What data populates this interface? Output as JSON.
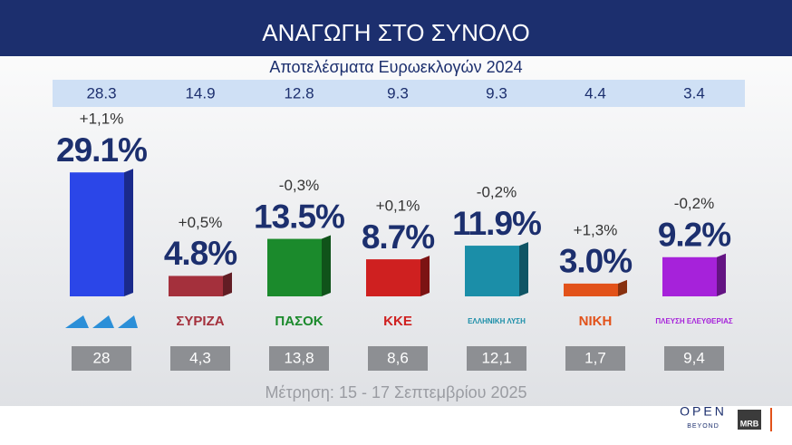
{
  "chart_data": {
    "type": "bar",
    "title": "ΑΝΑΓΩΓΗ ΣΤΟ ΣΥΝΟΛΟ",
    "subtitle": "Αποτελέσματα Ευρωεκλογών 2024",
    "categories": [
      null,
      "ΣΥΡΙΖΑ",
      "ΠΑΣΟΚ",
      "ΚΚΕ",
      "ΕΛΛΗΝΙΚΗ ΛΥΣΗ",
      "ΝΙΚΗ",
      "ΠΛΕΥΣΗ ΕΛΕΥΘΕΡΙΑΣ"
    ],
    "reference_values": [
      28.3,
      14.9,
      12.8,
      9.3,
      9.3,
      4.4,
      3.4
    ],
    "values": [
      29.1,
      4.8,
      13.5,
      8.7,
      11.9,
      3.0,
      9.2
    ],
    "value_labels": [
      "29.1%",
      "4.8%",
      "13.5%",
      "8.7%",
      "11.9%",
      "3.0%",
      "9.2%"
    ],
    "changes": [
      "+1,1%",
      "+0,5%",
      "-0,3%",
      "+0,1%",
      "-0,2%",
      "+1,3%",
      "-0,2%"
    ],
    "previous": [
      "28",
      "4,3",
      "13,8",
      "8,6",
      "12,1",
      "1,7",
      "9,4"
    ],
    "colors": [
      "#2b46e8",
      "#a4303c",
      "#1b8a2c",
      "#cf2020",
      "#1b8ea8",
      "#e2521a",
      "#a622da"
    ],
    "footnote": "Μέτρηση: 15 - 17 Σεπτεμβρίου 2025",
    "branding": [
      "OPEN",
      "BEYOND",
      "MRB"
    ]
  }
}
